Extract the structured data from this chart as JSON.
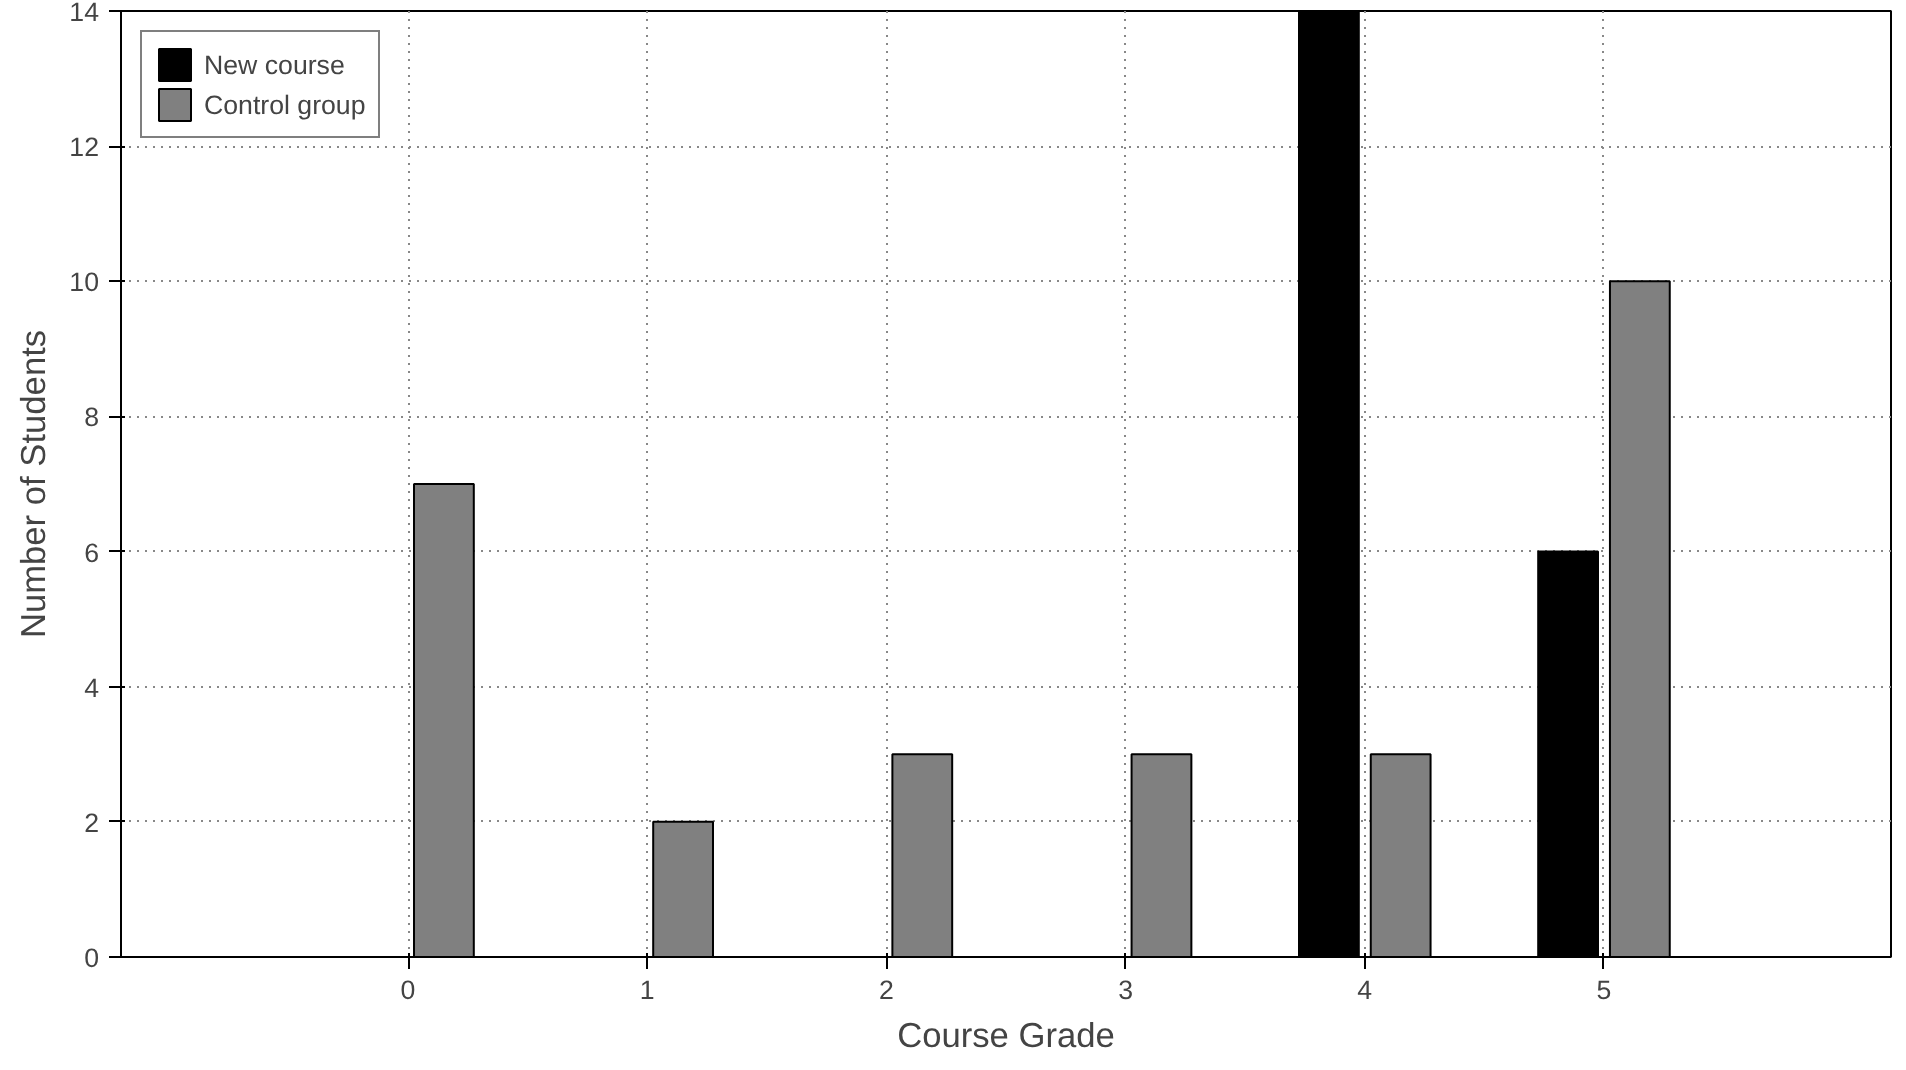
{
  "chart_data": {
    "type": "bar",
    "xlabel": "Course Grade",
    "ylabel": "Number of Students",
    "categories": [
      "0",
      "1",
      "2",
      "3",
      "4",
      "5"
    ],
    "series": [
      {
        "name": "New course",
        "color": "#000000",
        "values": [
          0,
          0,
          0,
          0,
          14,
          6
        ]
      },
      {
        "name": "Control group",
        "color": "#808080",
        "values": [
          7,
          2,
          3,
          3,
          3,
          10
        ]
      }
    ],
    "ylim": [
      0,
      14
    ],
    "yticks": [
      0,
      2,
      4,
      6,
      8,
      10,
      12,
      14
    ],
    "grid": true,
    "legend": "top left"
  }
}
